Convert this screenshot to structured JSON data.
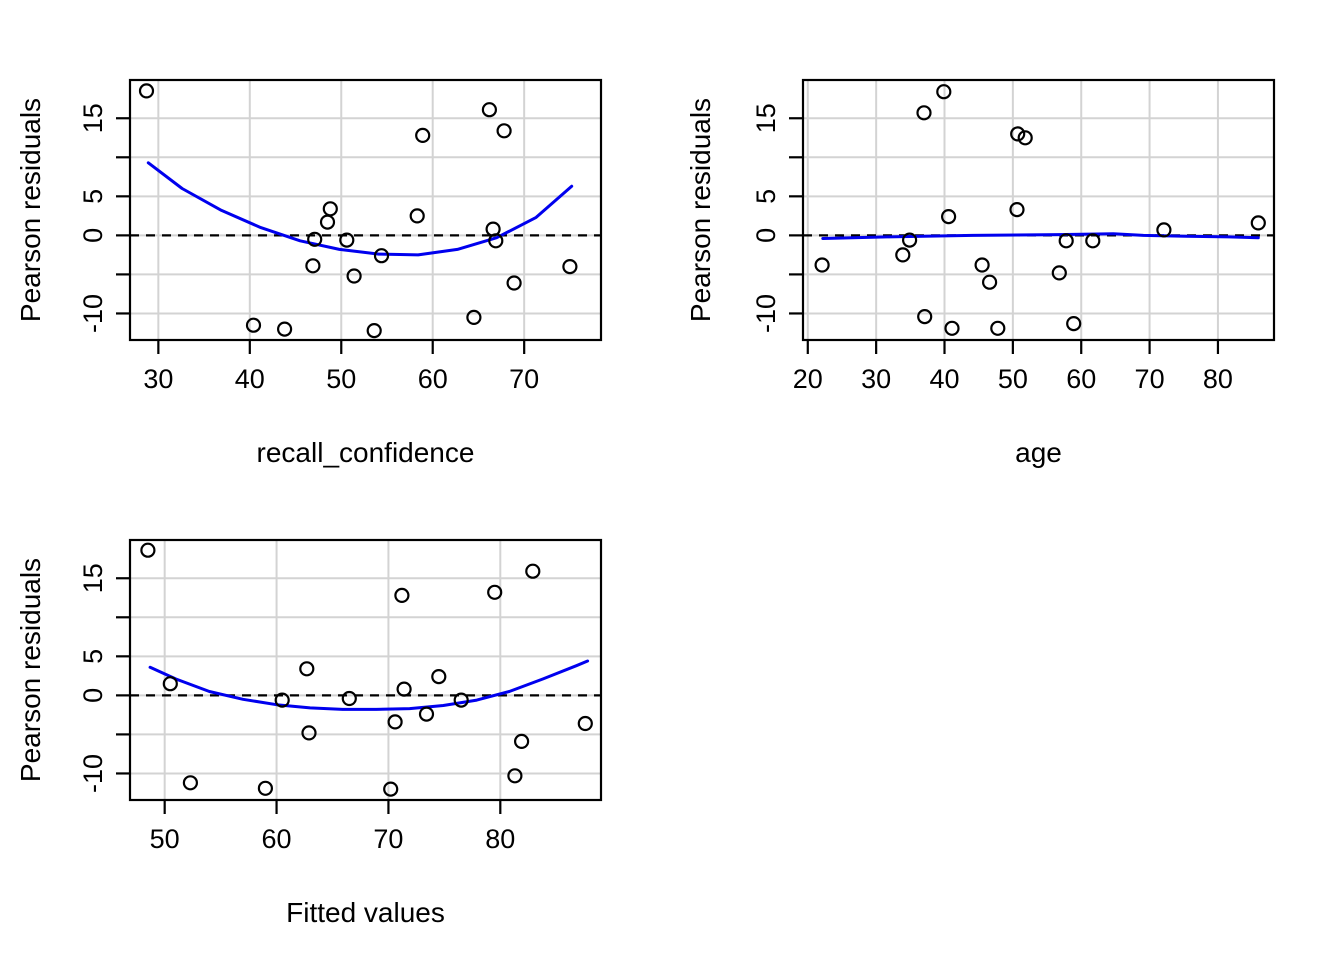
{
  "figure": {
    "description": "Residual diagnostic plots",
    "style": {
      "background": "#ffffff",
      "point_color": "#000000",
      "smooth_color": "#0000ee",
      "grid_color": "#d3d3d3",
      "dashed_line_color": "#000000",
      "box_color": "#000000",
      "text_color": "#000000"
    }
  },
  "chart_data": [
    {
      "type": "scatter",
      "panel": "top-left",
      "xlabel": "recall_confidence",
      "ylabel": "Pearson residuals",
      "xlim": [
        26.9,
        78.4
      ],
      "ylim": [
        -13.4,
        19.9
      ],
      "xticks": [
        30,
        40,
        50,
        60,
        70
      ],
      "xtick_labels": [
        "30",
        "40",
        "50",
        "60",
        "70"
      ],
      "yticks": [
        -10,
        -5,
        0,
        5,
        10,
        15
      ],
      "ytick_labels": [
        "-10",
        "",
        "0",
        "5",
        "",
        "15"
      ],
      "grid": true,
      "zero_line_y": 0,
      "points": [
        [
          28.7,
          18.5
        ],
        [
          66.2,
          16.1
        ],
        [
          67.8,
          13.4
        ],
        [
          58.9,
          12.8
        ],
        [
          48.8,
          3.4
        ],
        [
          58.3,
          2.5
        ],
        [
          48.5,
          1.7
        ],
        [
          66.6,
          0.8
        ],
        [
          47.1,
          -0.5
        ],
        [
          50.6,
          -0.6
        ],
        [
          66.9,
          -0.7
        ],
        [
          54.4,
          -2.6
        ],
        [
          46.9,
          -3.9
        ],
        [
          51.4,
          -5.2
        ],
        [
          75.0,
          -4.0
        ],
        [
          68.9,
          -6.1
        ],
        [
          64.5,
          -10.5
        ],
        [
          40.4,
          -11.5
        ],
        [
          43.8,
          -12.0
        ],
        [
          53.6,
          -12.2
        ]
      ],
      "smooth_curve": [
        [
          28.9,
          9.3
        ],
        [
          32.6,
          6.0
        ],
        [
          36.9,
          3.2
        ],
        [
          41.2,
          1.0
        ],
        [
          45.5,
          -0.7
        ],
        [
          49.8,
          -1.8
        ],
        [
          54.1,
          -2.4
        ],
        [
          58.4,
          -2.5
        ],
        [
          62.7,
          -1.8
        ],
        [
          67.0,
          -0.3
        ],
        [
          71.3,
          2.3
        ],
        [
          75.2,
          6.3
        ]
      ]
    },
    {
      "type": "scatter",
      "panel": "top-right",
      "xlabel": "age",
      "ylabel": "Pearson residuals",
      "xlim": [
        19.3,
        88.2
      ],
      "ylim": [
        -13.4,
        19.9
      ],
      "xticks": [
        20,
        30,
        40,
        50,
        60,
        70,
        80
      ],
      "xtick_labels": [
        "20",
        "30",
        "40",
        "50",
        "60",
        "70",
        "80"
      ],
      "yticks": [
        -10,
        -5,
        0,
        5,
        10,
        15
      ],
      "ytick_labels": [
        "-10",
        "",
        "0",
        "5",
        "",
        "15"
      ],
      "grid": true,
      "zero_line_y": 0,
      "points": [
        [
          39.9,
          18.4
        ],
        [
          37.0,
          15.7
        ],
        [
          50.7,
          13.0
        ],
        [
          51.8,
          12.5
        ],
        [
          50.6,
          3.3
        ],
        [
          40.6,
          2.4
        ],
        [
          72.1,
          0.7
        ],
        [
          85.9,
          1.6
        ],
        [
          34.9,
          -0.6
        ],
        [
          57.8,
          -0.7
        ],
        [
          61.7,
          -0.7
        ],
        [
          33.9,
          -2.5
        ],
        [
          22.1,
          -3.8
        ],
        [
          45.5,
          -3.8
        ],
        [
          56.8,
          -4.8
        ],
        [
          46.6,
          -6.0
        ],
        [
          37.1,
          -10.4
        ],
        [
          58.9,
          -11.3
        ],
        [
          41.1,
          -11.9
        ],
        [
          47.8,
          -11.9
        ]
      ],
      "smooth_curve": [
        [
          22.2,
          -0.4
        ],
        [
          31.6,
          -0.2
        ],
        [
          44.1,
          0.0
        ],
        [
          56.6,
          0.1
        ],
        [
          64.7,
          0.2
        ],
        [
          69.1,
          0.0
        ],
        [
          75.3,
          -0.1
        ],
        [
          81.6,
          -0.2
        ],
        [
          85.9,
          -0.3
        ]
      ]
    },
    {
      "type": "scatter",
      "panel": "bottom-left",
      "xlabel": "Fitted values",
      "ylabel": "Pearson residuals",
      "xlim": [
        46.9,
        89.0
      ],
      "ylim": [
        -13.4,
        19.9
      ],
      "xticks": [
        50,
        60,
        70,
        80
      ],
      "xtick_labels": [
        "50",
        "60",
        "70",
        "80"
      ],
      "yticks": [
        -10,
        -5,
        0,
        5,
        10,
        15
      ],
      "ytick_labels": [
        "-10",
        "",
        "0",
        "5",
        "",
        "15"
      ],
      "grid": true,
      "zero_line_y": 0,
      "points": [
        [
          48.5,
          18.6
        ],
        [
          82.9,
          15.9
        ],
        [
          79.5,
          13.2
        ],
        [
          71.2,
          12.8
        ],
        [
          62.7,
          3.4
        ],
        [
          74.5,
          2.4
        ],
        [
          50.5,
          1.5
        ],
        [
          71.4,
          0.8
        ],
        [
          60.5,
          -0.6
        ],
        [
          66.5,
          -0.4
        ],
        [
          76.5,
          -0.6
        ],
        [
          73.4,
          -2.4
        ],
        [
          70.6,
          -3.4
        ],
        [
          87.6,
          -3.6
        ],
        [
          62.9,
          -4.8
        ],
        [
          81.9,
          -5.9
        ],
        [
          81.3,
          -10.3
        ],
        [
          52.3,
          -11.2
        ],
        [
          59.0,
          -11.9
        ],
        [
          70.2,
          -12.0
        ]
      ],
      "smooth_curve": [
        [
          48.7,
          3.6
        ],
        [
          51.0,
          2.1
        ],
        [
          54.0,
          0.5
        ],
        [
          57.0,
          -0.5
        ],
        [
          60.0,
          -1.2
        ],
        [
          63.0,
          -1.6
        ],
        [
          65.9,
          -1.8
        ],
        [
          68.9,
          -1.8
        ],
        [
          71.9,
          -1.7
        ],
        [
          74.9,
          -1.3
        ],
        [
          77.9,
          -0.6
        ],
        [
          80.8,
          0.5
        ],
        [
          83.8,
          2.1
        ],
        [
          86.8,
          3.8
        ],
        [
          87.8,
          4.4
        ]
      ]
    }
  ]
}
